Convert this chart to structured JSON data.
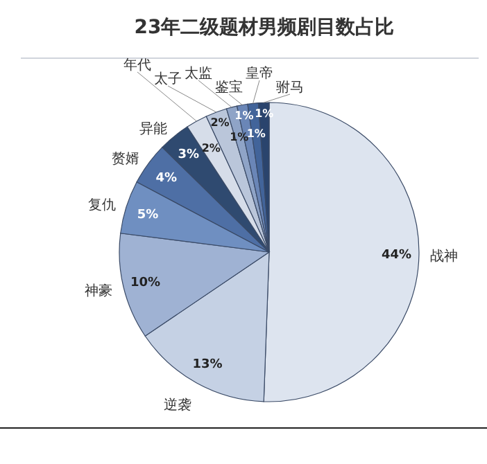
{
  "chart_data": {
    "type": "pie",
    "title": "23年二级题材男频剧目数占比",
    "categories": [
      "战神",
      "逆袭",
      "神豪",
      "复仇",
      "赘婿",
      "异能",
      "年代",
      "太子",
      "太监",
      "鉴宝",
      "皇帝",
      "驸马"
    ],
    "values": [
      44,
      13,
      10,
      5,
      4,
      3,
      2,
      2,
      1,
      1,
      1,
      1
    ],
    "colors": [
      "#dde4ef",
      "#c5d1e4",
      "#9fb2d3",
      "#6f8fc1",
      "#4e6fa5",
      "#2f4a70",
      "#d6dde9",
      "#bac6da",
      "#8fa4c7",
      "#6a86b7",
      "#42649a",
      "#2a446d"
    ],
    "value_labels": [
      "44%",
      "13%",
      "10%",
      "5%",
      "4%",
      "3%",
      "2%",
      "2%",
      "1%",
      "1%",
      "1%",
      "1%"
    ]
  }
}
